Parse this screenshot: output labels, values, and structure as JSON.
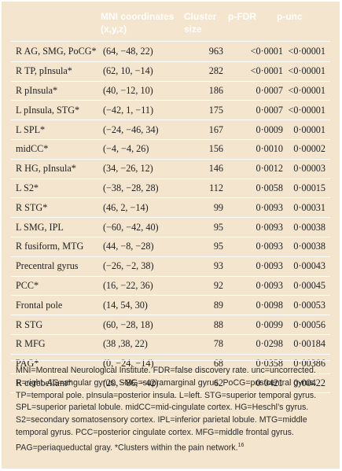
{
  "table": {
    "headers": {
      "mni": "MNI coordinates",
      "mni_sub": "(x,y,z)",
      "cluster": "Cluster",
      "cluster_sub": "size",
      "pfdr": "p-FDR",
      "punc": "p-unc"
    },
    "rows": [
      {
        "region": "R AG, SMG, PoCG*",
        "coords": "(64, −48, 22)",
        "size": "963",
        "pfdr": "<0·0001",
        "punc": "<0·00001"
      },
      {
        "region": "R TP, pInsula*",
        "coords": "(62, 10, −14)",
        "size": "282",
        "pfdr": "<0·0001",
        "punc": "<0·00001"
      },
      {
        "region": "R pInsula*",
        "coords": "(40, −12, 10)",
        "size": "186",
        "pfdr": "0·0007",
        "punc": "<0·00001"
      },
      {
        "region": "L pInsula, STG*",
        "coords": "(−42, 1, −11)",
        "size": "175",
        "pfdr": "0·0007",
        "punc": "<0·00001"
      },
      {
        "region": "L SPL*",
        "coords": "(−24, −46, 34)",
        "size": "167",
        "pfdr": "0·0009",
        "punc": "0·00001"
      },
      {
        "region": "midCC*",
        "coords": "(−4, −4, 26)",
        "size": "156",
        "pfdr": "0·0010",
        "punc": "0·00002"
      },
      {
        "region": "R HG, pInsula*",
        "coords": "(34, −26, 12)",
        "size": "146",
        "pfdr": "0·0012",
        "punc": "0·00003"
      },
      {
        "region": "L S2*",
        "coords": "(−38, −28, 28)",
        "size": "112",
        "pfdr": "0·0058",
        "punc": "0·00015"
      },
      {
        "region": "R STG*",
        "coords": "(46, 2, −14)",
        "size": "99",
        "pfdr": "0·0093",
        "punc": "0·00031"
      },
      {
        "region": "L SMG, IPL",
        "coords": "(−60, −42, 40)",
        "size": "95",
        "pfdr": "0·0093",
        "punc": "0·00038"
      },
      {
        "region": "R fusiform, MTG",
        "coords": "(44, −8, −28)",
        "size": "95",
        "pfdr": "0·0093",
        "punc": "0·00038"
      },
      {
        "region": "Precentral gyrus",
        "coords": "(−26, −2, 38)",
        "size": "93",
        "pfdr": "0·0093",
        "punc": "0·00043"
      },
      {
        "region": "PCC*",
        "coords": "(16, −22, 36)",
        "size": "92",
        "pfdr": "0·0093",
        "punc": "0·00045"
      },
      {
        "region": "Frontal pole",
        "coords": "(14, 54, 30)",
        "size": "89",
        "pfdr": "0·0098",
        "punc": "0·00053"
      },
      {
        "region": "R STG",
        "coords": "(60, −28, 18)",
        "size": "88",
        "pfdr": "0·0099",
        "punc": "0·00056"
      },
      {
        "region": "R MFG",
        "coords": "(38 ,38, 22)",
        "size": "78",
        "pfdr": "0·0298",
        "punc": "0·00184"
      },
      {
        "region": "PAG*",
        "coords": "(0, −24, −14)",
        "size": "68",
        "pfdr": "0·0358",
        "punc": "0·00386"
      },
      {
        "region": "R cerebellum*",
        "coords": "(20, −86, −42)",
        "size": "62",
        "pfdr": "0·0421",
        "punc": "0·00422"
      }
    ]
  },
  "footnote": "MNI=Montreal Neurological Institute. FDR=false discovery rate. unc=uncorrected. R=right. AG=angular gyrus. SMG=supramarginal gyrus. PoCG=postcentral gyrus. TP=temporal pole. pInsula=posterior insula. L=left. STG=superior temporal gyrus. SPL=superior parietal lobule. midCC=mid-cingulate cortex. HG=Heschl’s gyrus. S2=secondary somatosensory cortex. IPL=inferior parietal lobule. MTG=middle temporal gyrus. PCC=posterior cingulate cortex. MFG=middle frontal gyrus. PAG=periaqueductal gray. *Clusters within the pain network.",
  "footnote_ref": "16",
  "colors": {
    "panel": "#f4e5ce",
    "rules": "#ffffff",
    "text": "#222222"
  }
}
